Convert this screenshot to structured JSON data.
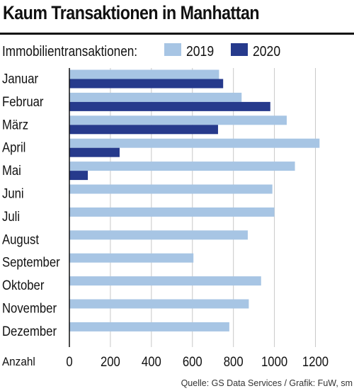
{
  "title": "Kaum Transaktionen in Manhattan",
  "source": "Quelle: GS Data Services / Grafik: FuW, sm",
  "colors": {
    "series_2019": "#a7c5e4",
    "series_2020": "#263a8c",
    "grid": "#c8c8c8",
    "axis": "#111111"
  },
  "chart_data": {
    "type": "bar",
    "orientation": "horizontal",
    "ylabel": "Immobilientransaktionen:",
    "xlabel": "Anzahl",
    "xlim": [
      0,
      1300
    ],
    "xticks": [
      0,
      200,
      400,
      600,
      800,
      1000,
      1200
    ],
    "grid": "vertical",
    "legend_position": "top",
    "categories": [
      "Januar",
      "Februar",
      "März",
      "April",
      "Mai",
      "Juni",
      "Juli",
      "August",
      "September",
      "Oktober",
      "November",
      "Dezember"
    ],
    "series": [
      {
        "name": "2019",
        "color": "#a7c5e4",
        "values": [
          730,
          840,
          1060,
          1220,
          1100,
          990,
          1000,
          870,
          605,
          935,
          875,
          780
        ]
      },
      {
        "name": "2020",
        "color": "#263a8c",
        "values": [
          750,
          980,
          725,
          245,
          90,
          null,
          null,
          null,
          null,
          null,
          null,
          null
        ]
      }
    ]
  }
}
